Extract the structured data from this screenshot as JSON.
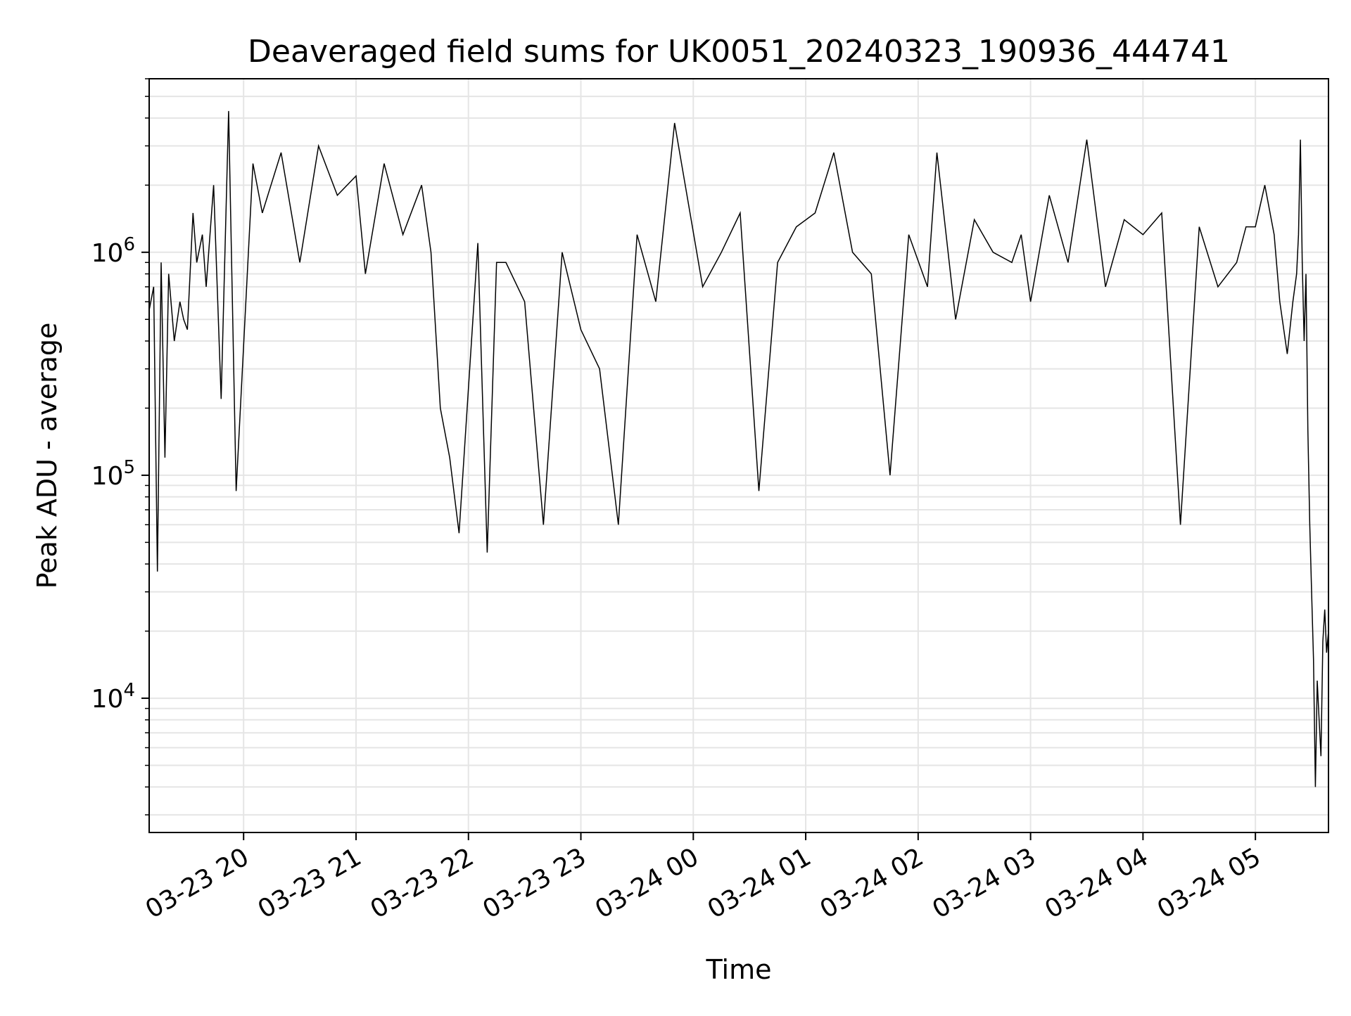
{
  "chart_data": {
    "type": "line",
    "title": "Deaveraged field sums for UK0051_20240323_190936_444741",
    "xlabel": "Time",
    "ylabel": "Peak ADU - average",
    "y_scale": "log",
    "ylim": [
      2500,
      6000000
    ],
    "xlim": [
      "2024-03-23 19:09:36",
      "2024-03-24 05:39:00"
    ],
    "grid": true,
    "line_color": "#000000",
    "grid_color": "#e5e5e5",
    "x_ticks": [
      {
        "value": "2024-03-23 20:00",
        "label": "03-23 20"
      },
      {
        "value": "2024-03-23 21:00",
        "label": "03-23 21"
      },
      {
        "value": "2024-03-23 22:00",
        "label": "03-23 22"
      },
      {
        "value": "2024-03-23 23:00",
        "label": "03-23 23"
      },
      {
        "value": "2024-03-24 00:00",
        "label": "03-24 00"
      },
      {
        "value": "2024-03-24 01:00",
        "label": "03-24 01"
      },
      {
        "value": "2024-03-24 02:00",
        "label": "03-24 02"
      },
      {
        "value": "2024-03-24 03:00",
        "label": "03-24 03"
      },
      {
        "value": "2024-03-24 04:00",
        "label": "03-24 04"
      },
      {
        "value": "2024-03-24 05:00",
        "label": "03-24 05"
      }
    ],
    "y_ticks": [
      {
        "value": 10000,
        "base": "10",
        "exp": "4"
      },
      {
        "value": 100000,
        "base": "10",
        "exp": "5"
      },
      {
        "value": 1000000,
        "base": "10",
        "exp": "6"
      }
    ],
    "series": [
      {
        "x": [
          "2024-03-23 19:09:36",
          "2024-03-23 19:12",
          "2024-03-23 19:14",
          "2024-03-23 19:16",
          "2024-03-23 19:18",
          "2024-03-23 19:20",
          "2024-03-23 19:23",
          "2024-03-23 19:26",
          "2024-03-23 19:28",
          "2024-03-23 19:30",
          "2024-03-23 19:33",
          "2024-03-23 19:35",
          "2024-03-23 19:38",
          "2024-03-23 19:40",
          "2024-03-23 19:44",
          "2024-03-23 19:48",
          "2024-03-23 19:52",
          "2024-03-23 19:56",
          "2024-03-23 20:05",
          "2024-03-23 20:10",
          "2024-03-23 20:20",
          "2024-03-23 20:30",
          "2024-03-23 20:40",
          "2024-03-23 20:50",
          "2024-03-23 21:00",
          "2024-03-23 21:05",
          "2024-03-23 21:15",
          "2024-03-23 21:25",
          "2024-03-23 21:35",
          "2024-03-23 21:40",
          "2024-03-23 21:45",
          "2024-03-23 21:50",
          "2024-03-23 21:55",
          "2024-03-23 22:05",
          "2024-03-23 22:10",
          "2024-03-23 22:15",
          "2024-03-23 22:20",
          "2024-03-23 22:30",
          "2024-03-23 22:40",
          "2024-03-23 22:50",
          "2024-03-23 23:00",
          "2024-03-23 23:10",
          "2024-03-23 23:20",
          "2024-03-23 23:30",
          "2024-03-23 23:40",
          "2024-03-23 23:50",
          "2024-03-24 00:05",
          "2024-03-24 00:15",
          "2024-03-24 00:25",
          "2024-03-24 00:35",
          "2024-03-24 00:45",
          "2024-03-24 00:55",
          "2024-03-24 01:05",
          "2024-03-24 01:15",
          "2024-03-24 01:25",
          "2024-03-24 01:35",
          "2024-03-24 01:45",
          "2024-03-24 01:55",
          "2024-03-24 02:05",
          "2024-03-24 02:10",
          "2024-03-24 02:20",
          "2024-03-24 02:30",
          "2024-03-24 02:40",
          "2024-03-24 02:50",
          "2024-03-24 02:55",
          "2024-03-24 03:00",
          "2024-03-24 03:10",
          "2024-03-24 03:20",
          "2024-03-24 03:30",
          "2024-03-24 03:40",
          "2024-03-24 03:50",
          "2024-03-24 04:00",
          "2024-03-24 04:10",
          "2024-03-24 04:20",
          "2024-03-24 04:30",
          "2024-03-24 04:40",
          "2024-03-24 04:50",
          "2024-03-24 04:55",
          "2024-03-24 05:00",
          "2024-03-24 05:05",
          "2024-03-24 05:10",
          "2024-03-24 05:13",
          "2024-03-24 05:17",
          "2024-03-24 05:20",
          "2024-03-24 05:22",
          "2024-03-24 05:23",
          "2024-03-24 05:24",
          "2024-03-24 05:25",
          "2024-03-24 05:26",
          "2024-03-24 05:27",
          "2024-03-24 05:28",
          "2024-03-24 05:29",
          "2024-03-24 05:30",
          "2024-03-24 05:31",
          "2024-03-24 05:32",
          "2024-03-24 05:33",
          "2024-03-24 05:34",
          "2024-03-24 05:35",
          "2024-03-24 05:36",
          "2024-03-24 05:37",
          "2024-03-24 05:38",
          "2024-03-24 05:39"
        ],
        "y": [
          550000,
          700000,
          37000,
          900000,
          120000,
          800000,
          400000,
          600000,
          500000,
          450000,
          1500000,
          900000,
          1200000,
          700000,
          2000000,
          220000,
          4300000,
          85000,
          2500000,
          1500000,
          2800000,
          900000,
          3000000,
          1800000,
          2200000,
          800000,
          2500000,
          1200000,
          2000000,
          1000000,
          200000,
          120000,
          55000,
          1100000,
          45000,
          900000,
          900000,
          600000,
          60000,
          1000000,
          450000,
          300000,
          60000,
          1200000,
          600000,
          3800000,
          700000,
          1000000,
          1500000,
          85000,
          900000,
          1300000,
          1500000,
          2800000,
          1000000,
          800000,
          100000,
          1200000,
          700000,
          2800000,
          500000,
          1400000,
          1000000,
          900000,
          1200000,
          600000,
          1800000,
          900000,
          3200000,
          700000,
          1400000,
          1200000,
          1500000,
          60000,
          1300000,
          700000,
          900000,
          1300000,
          1300000,
          2000000,
          1200000,
          600000,
          350000,
          600000,
          800000,
          1200000,
          3200000,
          900000,
          400000,
          800000,
          160000,
          60000,
          30000,
          15000,
          4000,
          12000,
          8000,
          5500,
          18000,
          25000,
          16000,
          20000
        ]
      }
    ]
  }
}
